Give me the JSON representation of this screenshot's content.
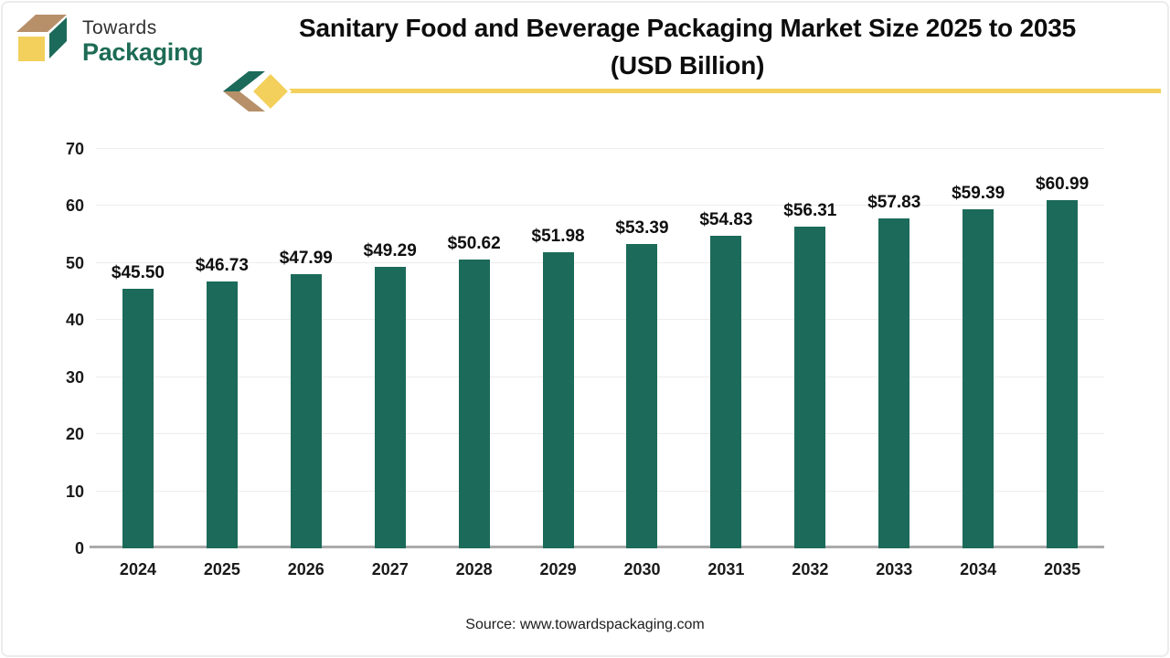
{
  "brand": {
    "line1": "Towards",
    "line2": "Packaging"
  },
  "header": {
    "title_line1": "Sanitary Food and Beverage Packaging Market Size 2025 to 2035",
    "title_line2": "(USD Billion)"
  },
  "chart_data": {
    "type": "bar",
    "title": "Sanitary Food and Beverage Packaging Market Size 2025 to 2035 (USD Billion)",
    "unit": "USD Billion",
    "categories": [
      "2024",
      "2025",
      "2026",
      "2027",
      "2028",
      "2029",
      "2030",
      "2031",
      "2032",
      "2033",
      "2034",
      "2035"
    ],
    "values": [
      45.5,
      46.73,
      47.99,
      49.29,
      50.62,
      51.98,
      53.39,
      54.83,
      56.31,
      57.83,
      59.39,
      60.99
    ],
    "labels": [
      "$45.50",
      "$46.73",
      "$47.99",
      "$49.29",
      "$50.62",
      "$51.98",
      "$53.39",
      "$54.83",
      "$56.31",
      "$57.83",
      "$59.39",
      "$60.99"
    ],
    "ylim": [
      0,
      70
    ],
    "y_ticks": [
      0,
      10,
      20,
      30,
      40,
      50,
      60,
      70
    ],
    "grid": true,
    "legend": "none"
  },
  "footer": {
    "source": "Source: www.towardspackaging.com"
  },
  "colors": {
    "bar": "#1c6a59",
    "accent_yellow": "#f3d05c",
    "accent_tan": "#b7906a",
    "brand_green": "#1d6b55",
    "grid": "#ededed",
    "axis": "#ababab"
  }
}
